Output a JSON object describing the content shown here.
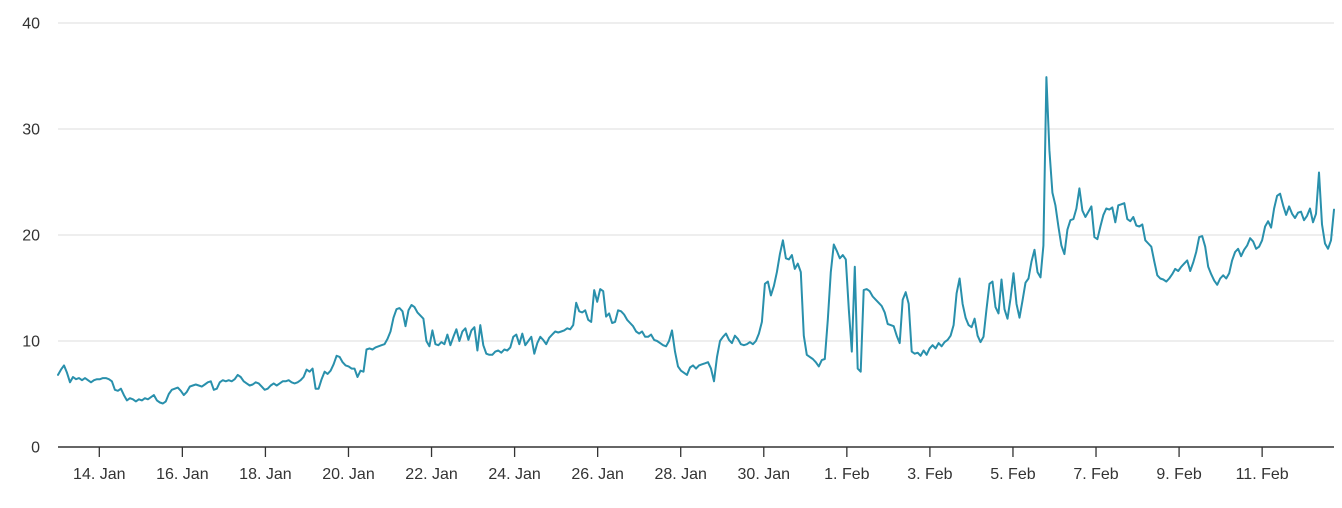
{
  "chart_data": {
    "type": "line",
    "title": "",
    "grid": true,
    "legend": "none",
    "line_color": "#2990ac",
    "grid_color": "#ebebeb",
    "axis_color": "#333333",
    "label_color": "#333333",
    "y_axis": {
      "range": [
        0,
        40
      ],
      "ticks": [
        0,
        10,
        20,
        30,
        40
      ],
      "tick_labels": [
        "0",
        "10",
        "20",
        "30",
        "40"
      ]
    },
    "x_axis": {
      "tick_labels": [
        "14. Jan",
        "16. Jan",
        "18. Jan",
        "20. Jan",
        "22. Jan",
        "24. Jan",
        "26. Jan",
        "28. Jan",
        "30. Jan",
        "1. Feb",
        "3. Feb",
        "5. Feb",
        "7. Feb",
        "9. Feb",
        "11. Feb"
      ],
      "tick_day_offsets": [
        0,
        2,
        4,
        6,
        8,
        10,
        12,
        14,
        16,
        18,
        20,
        22,
        24,
        26,
        28
      ],
      "day_zero_label": "14. Jan"
    },
    "series": [
      {
        "name": "value",
        "start_day": -0.994,
        "end_day": 29.73,
        "values": [
          6.8,
          7.3,
          7.7,
          7.0,
          6.1,
          6.6,
          6.4,
          6.5,
          6.3,
          6.5,
          6.3,
          6.1,
          6.3,
          6.4,
          6.4,
          6.5,
          6.5,
          6.4,
          6.2,
          5.4,
          5.3,
          5.5,
          4.9,
          4.4,
          4.6,
          4.5,
          4.3,
          4.5,
          4.4,
          4.6,
          4.5,
          4.7,
          4.9,
          4.4,
          4.2,
          4.1,
          4.3,
          5.0,
          5.4,
          5.5,
          5.6,
          5.3,
          4.9,
          5.2,
          5.7,
          5.8,
          5.9,
          5.8,
          5.7,
          5.9,
          6.1,
          6.2,
          5.4,
          5.5,
          6.1,
          6.3,
          6.2,
          6.3,
          6.2,
          6.4,
          6.8,
          6.6,
          6.2,
          6.0,
          5.8,
          5.9,
          6.1,
          6.0,
          5.7,
          5.4,
          5.5,
          5.8,
          6.0,
          5.8,
          6.0,
          6.2,
          6.2,
          6.3,
          6.1,
          6.0,
          6.1,
          6.3,
          6.6,
          7.3,
          7.1,
          7.4,
          5.5,
          5.5,
          6.4,
          7.1,
          6.9,
          7.2,
          7.8,
          8.6,
          8.5,
          8.0,
          7.7,
          7.6,
          7.4,
          7.4,
          6.6,
          7.2,
          7.1,
          9.2,
          9.3,
          9.2,
          9.4,
          9.5,
          9.6,
          9.7,
          10.2,
          10.9,
          12.2,
          13.0,
          13.1,
          12.8,
          11.4,
          12.9,
          13.4,
          13.2,
          12.7,
          12.4,
          12.1,
          10.0,
          9.5,
          11.0,
          9.7,
          9.6,
          9.9,
          9.7,
          10.6,
          9.6,
          10.4,
          11.1,
          10.0,
          10.9,
          11.2,
          10.1,
          11.0,
          11.3,
          9.1,
          11.5,
          9.6,
          8.8,
          8.7,
          8.7,
          9.0,
          9.1,
          8.9,
          9.2,
          9.1,
          9.4,
          10.4,
          10.6,
          9.7,
          10.7,
          9.6,
          10.0,
          10.4,
          8.8,
          9.8,
          10.4,
          10.1,
          9.7,
          10.3,
          10.6,
          10.9,
          10.8,
          10.9,
          11.0,
          11.2,
          11.1,
          11.5,
          13.6,
          12.8,
          12.7,
          12.9,
          12.0,
          11.8,
          14.8,
          13.7,
          14.9,
          14.7,
          12.3,
          12.6,
          11.7,
          11.8,
          12.9,
          12.8,
          12.5,
          12.0,
          11.7,
          11.4,
          10.9,
          10.7,
          10.9,
          10.4,
          10.4,
          10.6,
          10.1,
          10.0,
          9.8,
          9.6,
          9.5,
          10.0,
          11.0,
          9.0,
          7.6,
          7.2,
          7.0,
          6.8,
          7.5,
          7.7,
          7.4,
          7.7,
          7.8,
          7.9,
          8.0,
          7.4,
          6.2,
          8.5,
          10.0,
          10.4,
          10.7,
          10.1,
          9.8,
          10.5,
          10.2,
          9.7,
          9.6,
          9.7,
          9.9,
          9.7,
          10.0,
          10.7,
          11.8,
          15.4,
          15.6,
          14.3,
          15.2,
          16.5,
          18.2,
          19.5,
          17.8,
          17.7,
          18.1,
          16.8,
          17.3,
          16.5,
          10.5,
          8.7,
          8.5,
          8.3,
          8.0,
          7.6,
          8.2,
          8.3,
          12.0,
          16.5,
          19.1,
          18.5,
          17.8,
          18.1,
          17.7,
          13.0,
          9.0,
          17.0,
          7.4,
          7.1,
          14.8,
          14.9,
          14.7,
          14.2,
          13.9,
          13.6,
          13.3,
          12.7,
          11.6,
          11.5,
          11.4,
          10.5,
          9.8,
          13.9,
          14.6,
          13.5,
          9.0,
          8.8,
          8.9,
          8.6,
          9.1,
          8.7,
          9.3,
          9.6,
          9.3,
          9.8,
          9.5,
          9.9,
          10.1,
          10.5,
          11.5,
          14.5,
          15.9,
          13.5,
          12.2,
          11.5,
          11.3,
          12.1,
          10.5,
          9.9,
          10.4,
          13.0,
          15.4,
          15.6,
          13.2,
          12.6,
          15.8,
          13.0,
          12.1,
          14.0,
          16.4,
          13.5,
          12.2,
          13.8,
          15.5,
          15.9,
          17.5,
          18.6,
          16.5,
          16.0,
          19.0,
          34.9,
          28.0,
          24.0,
          22.8,
          20.8,
          19.0,
          18.2,
          20.5,
          21.4,
          21.5,
          22.5,
          24.4,
          22.3,
          21.7,
          22.2,
          22.7,
          19.8,
          19.6,
          20.8,
          21.9,
          22.5,
          22.4,
          22.6,
          21.2,
          22.8,
          22.9,
          23.0,
          21.5,
          21.3,
          21.7,
          20.9,
          20.8,
          21.0,
          19.5,
          19.2,
          18.9,
          17.5,
          16.2,
          15.9,
          15.8,
          15.6,
          15.9,
          16.3,
          16.8,
          16.6,
          17.0,
          17.3,
          17.6,
          16.6,
          17.4,
          18.4,
          19.8,
          19.9,
          18.9,
          17.0,
          16.3,
          15.7,
          15.3,
          15.9,
          16.2,
          15.9,
          16.4,
          17.6,
          18.4,
          18.7,
          18.0,
          18.6,
          19.0,
          19.7,
          19.4,
          18.7,
          18.9,
          19.5,
          20.8,
          21.3,
          20.7,
          22.5,
          23.7,
          23.9,
          22.8,
          21.9,
          22.7,
          22.0,
          21.6,
          22.1,
          22.2,
          21.4,
          21.8,
          22.5,
          21.2,
          22.0,
          25.9,
          21.0,
          19.2,
          18.7,
          19.5,
          22.4
        ]
      }
    ]
  }
}
